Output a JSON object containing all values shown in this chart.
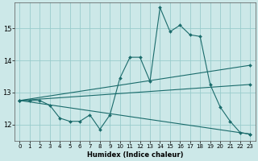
{
  "xlabel": "Humidex (Indice chaleur)",
  "background_color": "#cce8e8",
  "grid_color": "#99cccc",
  "line_color": "#1a6b6b",
  "xlim": [
    -0.5,
    23.5
  ],
  "ylim": [
    11.5,
    15.8
  ],
  "yticks": [
    12,
    13,
    14,
    15
  ],
  "xticks": [
    0,
    1,
    2,
    3,
    4,
    5,
    6,
    7,
    8,
    9,
    10,
    11,
    12,
    13,
    14,
    15,
    16,
    17,
    18,
    19,
    20,
    21,
    22,
    23
  ],
  "series": [
    {
      "x": [
        0,
        1,
        2,
        3,
        4,
        5,
        6,
        7,
        8,
        9,
        10,
        11,
        12,
        13,
        14,
        15,
        16,
        17,
        18,
        19,
        20,
        21,
        22,
        23
      ],
      "y": [
        12.75,
        12.75,
        12.75,
        12.6,
        12.2,
        12.1,
        12.1,
        12.3,
        11.85,
        12.3,
        13.45,
        14.1,
        14.1,
        13.35,
        15.65,
        14.9,
        15.1,
        14.8,
        14.75,
        13.25,
        12.55,
        12.1,
        11.75,
        11.7
      ],
      "markers": true
    },
    {
      "x": [
        0,
        23
      ],
      "y": [
        12.75,
        13.85
      ],
      "markers": true
    },
    {
      "x": [
        0,
        23
      ],
      "y": [
        12.75,
        13.25
      ],
      "markers": true
    },
    {
      "x": [
        0,
        23
      ],
      "y": [
        12.75,
        11.7
      ],
      "markers": true
    }
  ]
}
